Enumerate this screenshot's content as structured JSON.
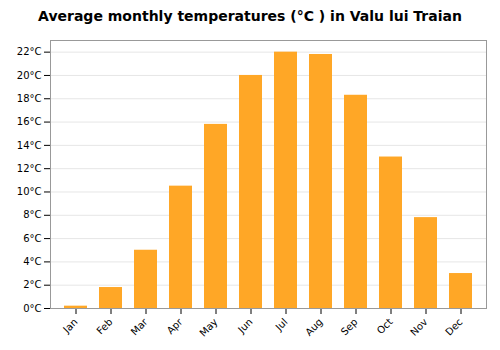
{
  "chart_data": {
    "type": "bar",
    "title": "Average monthly temperatures (°C ) in Valu lui Traian",
    "categories": [
      "Jan",
      "Feb",
      "Mar",
      "Apr",
      "May",
      "Jun",
      "Jul",
      "Aug",
      "Sep",
      "Oct",
      "Nov",
      "Dec"
    ],
    "values": [
      0.2,
      1.8,
      5.0,
      10.5,
      15.8,
      20.0,
      22.0,
      21.8,
      18.3,
      13.0,
      7.8,
      3.0
    ],
    "color": "#FFA726",
    "ylim": [
      0,
      23
    ],
    "yticks": [
      {
        "value": 0,
        "label": "0°C"
      },
      {
        "value": 2,
        "label": "2°C"
      },
      {
        "value": 4,
        "label": "4°C"
      },
      {
        "value": 6,
        "label": "6°C"
      },
      {
        "value": 8,
        "label": "8°C"
      },
      {
        "value": 10,
        "label": "10°C"
      },
      {
        "value": 12,
        "label": "12°C"
      },
      {
        "value": 14,
        "label": "14°C"
      },
      {
        "value": 16,
        "label": "16°C"
      },
      {
        "value": 18,
        "label": "18°C"
      },
      {
        "value": 20,
        "label": "20°C"
      },
      {
        "value": 22,
        "label": "22°C"
      }
    ],
    "grid": true
  }
}
